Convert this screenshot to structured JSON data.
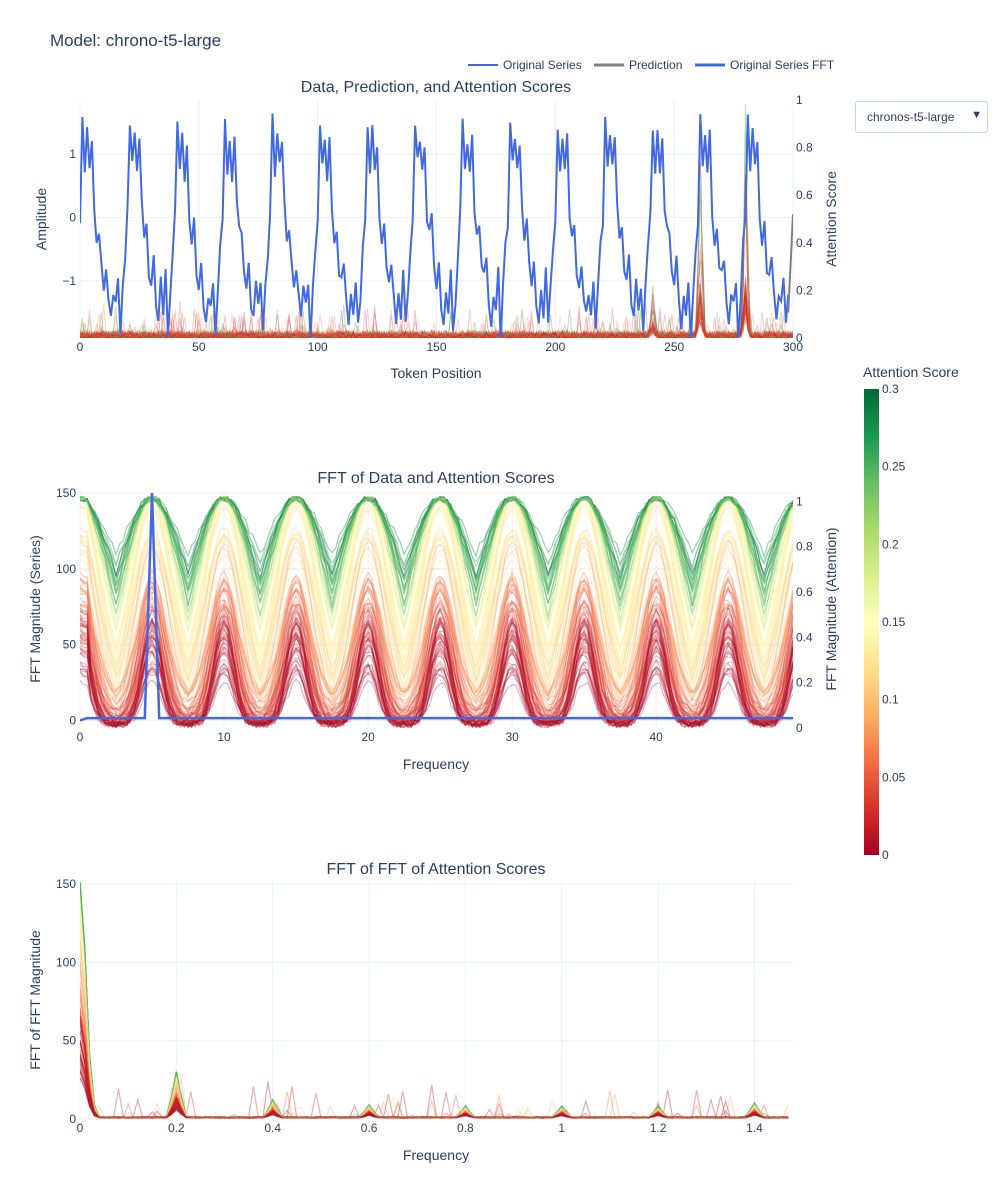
{
  "page": {
    "title": "Model: chrono-t5-large"
  },
  "dropdown": {
    "selected": "chronos-t5-large"
  },
  "legend": [
    {
      "label": "Original Series",
      "color": "#4169e1"
    },
    {
      "label": "Prediction",
      "color": "#808080"
    },
    {
      "label": "Original Series FFT",
      "color": "#4169e1"
    }
  ],
  "colorbar": {
    "title": "Attention Score",
    "range": [
      0,
      0.3
    ],
    "ticks": [
      "0",
      "0.05",
      "0.1",
      "0.15",
      "0.2",
      "0.25",
      "0.3"
    ],
    "colorscale": [
      "#a50026",
      "#d73027",
      "#f46d43",
      "#fdae61",
      "#fee08b",
      "#ffffbf",
      "#d9ef8b",
      "#a6d96a",
      "#66bd63",
      "#1a9850",
      "#006837"
    ]
  },
  "chart_data": [
    {
      "type": "line",
      "title": "Data, Prediction, and Attention Scores",
      "xlabel": "Token Position",
      "ylabel": "Amplitude",
      "y2label": "Attention Score",
      "xlim": [
        0,
        300
      ],
      "ylim": [
        -1.9,
        1.85
      ],
      "y2lim": [
        0,
        1
      ],
      "xticks": [
        "0",
        "50",
        "100",
        "150",
        "200",
        "250",
        "300"
      ],
      "yticks": [
        "−1",
        "0",
        "1"
      ],
      "y2ticks": [
        "0",
        "0.2",
        "0.4",
        "0.6",
        "0.8",
        "1"
      ],
      "series": [
        {
          "name": "Original Series",
          "color": "#4169e1",
          "period": 20,
          "x_range": [
            0,
            298
          ],
          "y_range": [
            -1.8,
            1.65
          ]
        },
        {
          "name": "Prediction",
          "color": "#808080",
          "x_range": [
            298,
            300
          ],
          "values": [
            -1.5,
            0.05
          ]
        }
      ],
      "attention_peaks": [
        {
          "x": 241,
          "value": 0.22
        },
        {
          "x": 261,
          "value": 0.88
        },
        {
          "x": 280,
          "value": 1.0
        }
      ]
    },
    {
      "type": "line",
      "title": "FFT of Data and Attention Scores",
      "xlabel": "Frequency",
      "ylabel": "FFT Magnitude (Series)",
      "y2label": "FFT Magnitude (Attention)",
      "xlim": [
        0,
        49.5
      ],
      "ylim": [
        -5,
        152
      ],
      "y2lim": [
        0,
        1.05
      ],
      "xticks": [
        "0",
        "10",
        "20",
        "30",
        "40"
      ],
      "yticks": [
        "0",
        "50",
        "100",
        "150"
      ],
      "y2ticks": [
        "0",
        "0.2",
        "0.4",
        "0.6",
        "0.8",
        "1"
      ],
      "series": [
        {
          "name": "Original Series FFT",
          "color": "#4169e1",
          "peak_x": 5,
          "peak_value": 150
        }
      ],
      "attention_peak_spacing": 5
    },
    {
      "type": "line",
      "title": "FFT of FFT of Attention Scores",
      "xlabel": "Frequency",
      "ylabel": "FFT of FFT Magnitude",
      "xlim": [
        0,
        1.48
      ],
      "ylim": [
        0,
        152
      ],
      "xticks": [
        "0",
        "0.2",
        "0.4",
        "0.6",
        "0.8",
        "1",
        "1.2",
        "1.4"
      ],
      "yticks": [
        "0",
        "50",
        "100",
        "150"
      ],
      "peaks": [
        {
          "x": 0,
          "value": 150
        },
        {
          "x": 0.2,
          "value": 29
        },
        {
          "x": 0.4,
          "value": 11
        },
        {
          "x": 0.6,
          "value": 8
        },
        {
          "x": 0.8,
          "value": 7
        },
        {
          "x": 1.0,
          "value": 7
        },
        {
          "x": 1.2,
          "value": 7
        },
        {
          "x": 1.4,
          "value": 9
        }
      ]
    }
  ]
}
